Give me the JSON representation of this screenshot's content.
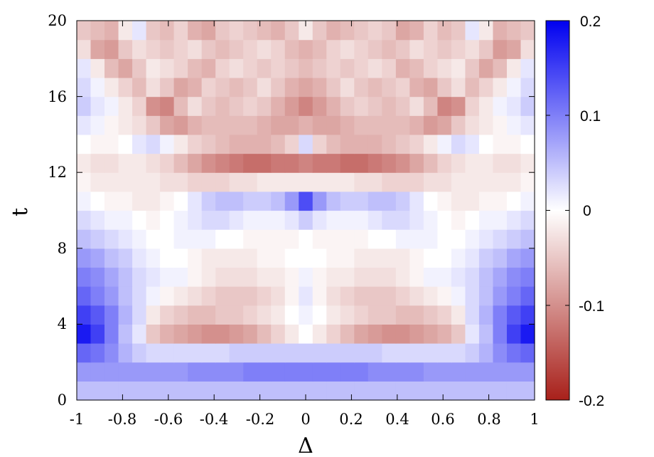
{
  "chart_data": {
    "type": "heatmap",
    "title": "",
    "xlabel": "Δ",
    "ylabel": "t",
    "xlim": [
      -1,
      1
    ],
    "ylim": [
      0,
      20
    ],
    "x_ticks": [
      "-1",
      "-0.8",
      "-0.6",
      "-0.4",
      "-0.2",
      "0",
      "0.2",
      "0.4",
      "0.6",
      "0.8",
      "1"
    ],
    "y_ticks": [
      "0",
      "4",
      "8",
      "12",
      "16",
      "20"
    ],
    "colorbar": {
      "range": [
        -0.2,
        0.2
      ],
      "ticks": [
        "-0.2",
        "-0.1",
        "0",
        "0.1",
        "0.2"
      ],
      "colormap": [
        "#a8201a",
        "#ffffff",
        "#0000f0"
      ]
    },
    "x_centers": [
      -0.9697,
      -0.9091,
      -0.8485,
      -0.7879,
      -0.7273,
      -0.6667,
      -0.6061,
      -0.5455,
      -0.4848,
      -0.4242,
      -0.3636,
      -0.303,
      -0.2424,
      -0.1818,
      -0.1212,
      -0.0606,
      0,
      0.0606,
      0.1212,
      0.1818,
      0.2424,
      0.303,
      0.3636,
      0.4242,
      0.4848,
      0.5455,
      0.6061,
      0.6667,
      0.7273,
      0.7879,
      0.8485,
      0.9091,
      0.9697
    ],
    "y_centers": [
      0.5,
      1.5,
      2.5,
      3.5,
      4.5,
      5.5,
      6.5,
      7.5,
      8.5,
      9.5,
      10.5,
      11.5,
      12.5,
      13.5,
      14.5,
      15.5,
      16.5,
      17.5,
      18.5,
      19.5
    ],
    "values": [
      [
        0.05,
        0.05,
        0.05,
        0.05,
        0.05,
        0.05,
        0.05,
        0.05,
        0.05,
        0.05,
        0.05,
        0.05,
        0.05,
        0.05,
        0.05,
        0.05,
        0.05,
        0.05,
        0.05,
        0.05,
        0.05,
        0.05,
        0.05,
        0.05,
        0.05,
        0.05,
        0.05,
        0.05,
        0.05,
        0.05,
        0.05,
        0.05,
        0.05
      ],
      [
        0.08,
        0.08,
        0.08,
        0.08,
        0.08,
        0.08,
        0.08,
        0.08,
        0.09,
        0.09,
        0.09,
        0.09,
        0.1,
        0.1,
        0.1,
        0.1,
        0.1,
        0.1,
        0.1,
        0.1,
        0.1,
        0.09,
        0.09,
        0.09,
        0.09,
        0.08,
        0.08,
        0.08,
        0.08,
        0.08,
        0.08,
        0.08,
        0.08
      ],
      [
        0.12,
        0.11,
        0.09,
        0.06,
        0.04,
        0.03,
        0.03,
        0.03,
        0.03,
        0.03,
        0.03,
        0.04,
        0.04,
        0.04,
        0.04,
        0.04,
        0.04,
        0.04,
        0.04,
        0.04,
        0.04,
        0.04,
        0.03,
        0.03,
        0.03,
        0.03,
        0.03,
        0.03,
        0.04,
        0.06,
        0.09,
        0.11,
        0.12
      ],
      [
        0.18,
        0.15,
        0.1,
        0.05,
        0.02,
        -0.05,
        -0.07,
        -0.08,
        -0.09,
        -0.1,
        -0.1,
        -0.09,
        -0.08,
        -0.06,
        -0.04,
        -0.02,
        0,
        -0.02,
        -0.04,
        -0.06,
        -0.08,
        -0.09,
        -0.1,
        -0.1,
        -0.09,
        -0.08,
        -0.07,
        -0.05,
        0.02,
        0.05,
        0.1,
        0.15,
        0.18
      ],
      [
        0.15,
        0.13,
        0.1,
        0.06,
        0.03,
        -0.02,
        -0.04,
        -0.05,
        -0.06,
        -0.06,
        -0.05,
        -0.05,
        -0.04,
        -0.03,
        -0.02,
        0,
        0.01,
        0,
        -0.02,
        -0.03,
        -0.04,
        -0.05,
        -0.05,
        -0.06,
        -0.06,
        -0.05,
        -0.04,
        -0.02,
        0.03,
        0.06,
        0.1,
        0.13,
        0.15
      ],
      [
        0.12,
        0.1,
        0.08,
        0.05,
        0.03,
        0.01,
        -0.01,
        -0.02,
        -0.03,
        -0.04,
        -0.05,
        -0.05,
        -0.05,
        -0.04,
        -0.03,
        -0.01,
        0.02,
        -0.01,
        -0.03,
        -0.04,
        -0.05,
        -0.05,
        -0.05,
        -0.04,
        -0.03,
        -0.02,
        -0.01,
        0.01,
        0.03,
        0.05,
        0.08,
        0.1,
        0.12
      ],
      [
        0.1,
        0.09,
        0.07,
        0.05,
        0.03,
        0.02,
        0.01,
        0.01,
        -0.01,
        -0.02,
        -0.03,
        -0.03,
        -0.03,
        -0.02,
        -0.02,
        -0.01,
        0.01,
        -0.01,
        -0.02,
        -0.02,
        -0.03,
        -0.03,
        -0.03,
        -0.02,
        -0.01,
        0.01,
        0.01,
        0.02,
        0.03,
        0.05,
        0.07,
        0.09,
        0.1
      ],
      [
        0.08,
        0.07,
        0.05,
        0.04,
        0.02,
        0.01,
        0,
        0,
        -0.01,
        -0.02,
        -0.02,
        -0.02,
        -0.02,
        -0.01,
        -0.01,
        0,
        0,
        0,
        -0.01,
        -0.01,
        -0.02,
        -0.02,
        -0.02,
        -0.02,
        -0.01,
        0,
        0,
        0.01,
        0.02,
        0.04,
        0.05,
        0.07,
        0.08
      ],
      [
        0.05,
        0.04,
        0.03,
        0.02,
        0.01,
        0,
        0,
        0.01,
        0.01,
        0.01,
        0,
        0,
        -0.01,
        -0.01,
        -0.01,
        -0.01,
        0,
        -0.01,
        -0.01,
        -0.01,
        -0.01,
        0,
        0,
        0.01,
        0.01,
        0.01,
        0,
        0,
        0.01,
        0.02,
        0.03,
        0.04,
        0.05
      ],
      [
        0.03,
        0.02,
        0.01,
        0.01,
        0,
        -0.01,
        0,
        0.01,
        0.02,
        0.03,
        0.03,
        0.02,
        0.01,
        0.01,
        0.01,
        0.02,
        0.04,
        0.02,
        0.01,
        0.01,
        0.01,
        0.02,
        0.03,
        0.03,
        0.02,
        0.01,
        0,
        -0.01,
        0,
        0.01,
        0.01,
        0.02,
        0.03
      ],
      [
        0.01,
        0,
        -0.01,
        -0.01,
        -0.02,
        -0.02,
        -0.01,
        0,
        0.02,
        0.04,
        0.05,
        0.05,
        0.04,
        0.04,
        0.05,
        0.08,
        0.14,
        0.08,
        0.05,
        0.04,
        0.04,
        0.05,
        0.05,
        0.04,
        0.02,
        0,
        -0.01,
        -0.02,
        -0.02,
        -0.01,
        -0.01,
        0,
        0.01
      ],
      [
        -0.01,
        -0.02,
        -0.02,
        -0.02,
        -0.02,
        -0.02,
        -0.03,
        -0.03,
        -0.04,
        -0.04,
        -0.04,
        -0.03,
        -0.03,
        -0.02,
        -0.02,
        -0.02,
        -0.02,
        -0.02,
        -0.02,
        -0.02,
        -0.03,
        -0.03,
        -0.04,
        -0.04,
        -0.04,
        -0.03,
        -0.03,
        -0.02,
        -0.02,
        -0.02,
        -0.02,
        -0.02,
        -0.01
      ],
      [
        -0.02,
        -0.03,
        -0.03,
        -0.02,
        -0.02,
        -0.03,
        -0.04,
        -0.06,
        -0.08,
        -0.1,
        -0.11,
        -0.12,
        -0.13,
        -0.13,
        -0.12,
        -0.12,
        -0.11,
        -0.12,
        -0.12,
        -0.13,
        -0.13,
        -0.12,
        -0.11,
        -0.1,
        -0.08,
        -0.06,
        -0.04,
        -0.03,
        -0.02,
        -0.02,
        -0.03,
        -0.03,
        -0.02
      ],
      [
        0,
        -0.01,
        -0.01,
        0,
        0.02,
        0.03,
        0.01,
        -0.02,
        -0.04,
        -0.05,
        -0.06,
        -0.07,
        -0.07,
        -0.07,
        -0.06,
        -0.04,
        0.03,
        -0.04,
        -0.06,
        -0.07,
        -0.07,
        -0.07,
        -0.06,
        -0.05,
        -0.04,
        -0.02,
        0.01,
        0.03,
        0.02,
        0,
        -0.01,
        -0.01,
        0
      ],
      [
        0.02,
        0.01,
        -0.01,
        -0.02,
        -0.03,
        -0.05,
        -0.08,
        -0.09,
        -0.07,
        -0.06,
        -0.06,
        -0.06,
        -0.06,
        -0.07,
        -0.08,
        -0.08,
        -0.07,
        -0.08,
        -0.08,
        -0.07,
        -0.06,
        -0.06,
        -0.06,
        -0.06,
        -0.07,
        -0.09,
        -0.08,
        -0.05,
        -0.03,
        -0.02,
        -0.01,
        0.01,
        0.02
      ],
      [
        0.04,
        0.02,
        0.01,
        -0.02,
        -0.04,
        -0.1,
        -0.11,
        -0.06,
        -0.03,
        -0.05,
        -0.06,
        -0.05,
        -0.04,
        -0.05,
        -0.07,
        -0.09,
        -0.11,
        -0.09,
        -0.07,
        -0.05,
        -0.04,
        -0.05,
        -0.06,
        -0.05,
        -0.03,
        -0.06,
        -0.11,
        -0.1,
        -0.04,
        -0.02,
        0.01,
        0.02,
        0.04
      ],
      [
        0.03,
        0.01,
        -0.02,
        -0.04,
        -0.06,
        -0.03,
        -0.05,
        -0.08,
        -0.07,
        -0.04,
        -0.05,
        -0.06,
        -0.05,
        -0.03,
        -0.05,
        -0.07,
        -0.08,
        -0.07,
        -0.05,
        -0.03,
        -0.05,
        -0.06,
        -0.05,
        -0.04,
        -0.07,
        -0.08,
        -0.05,
        -0.03,
        -0.06,
        -0.04,
        -0.02,
        0.01,
        0.03
      ],
      [
        0.02,
        -0.02,
        -0.06,
        -0.08,
        -0.05,
        -0.02,
        -0.03,
        -0.04,
        -0.06,
        -0.07,
        -0.04,
        -0.03,
        -0.04,
        -0.05,
        -0.04,
        -0.05,
        -0.06,
        -0.05,
        -0.04,
        -0.05,
        -0.04,
        -0.03,
        -0.04,
        -0.07,
        -0.06,
        -0.04,
        -0.03,
        -0.02,
        -0.05,
        -0.08,
        -0.06,
        -0.02,
        0.02
      ],
      [
        -0.03,
        -0.08,
        -0.09,
        -0.05,
        -0.03,
        -0.04,
        -0.05,
        -0.04,
        -0.03,
        -0.05,
        -0.06,
        -0.05,
        -0.04,
        -0.03,
        -0.04,
        -0.06,
        -0.07,
        -0.06,
        -0.04,
        -0.03,
        -0.04,
        -0.05,
        -0.06,
        -0.05,
        -0.03,
        -0.04,
        -0.05,
        -0.04,
        -0.03,
        -0.05,
        -0.09,
        -0.08,
        -0.03
      ],
      [
        -0.05,
        -0.06,
        -0.07,
        -0.02,
        0.02,
        -0.05,
        -0.06,
        -0.04,
        -0.07,
        -0.08,
        -0.05,
        -0.04,
        -0.05,
        -0.06,
        -0.07,
        -0.05,
        -0.02,
        -0.05,
        -0.07,
        -0.06,
        -0.05,
        -0.04,
        -0.05,
        -0.08,
        -0.07,
        -0.04,
        -0.06,
        -0.05,
        0.02,
        -0.02,
        -0.07,
        -0.06,
        -0.05
      ]
    ]
  }
}
